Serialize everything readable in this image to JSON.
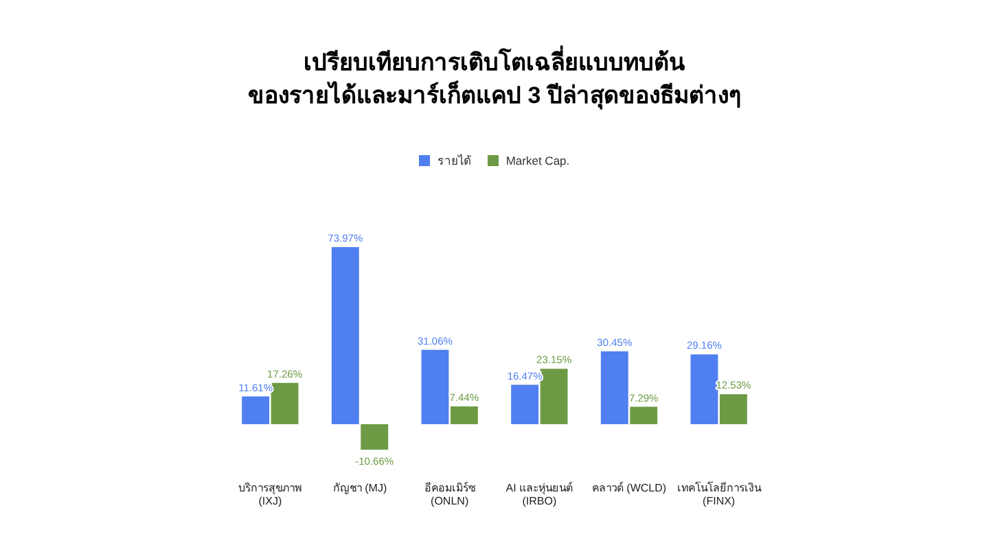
{
  "chart_data": {
    "type": "bar",
    "title": "เปรียบเทียบการเติบโตเฉลี่ยแบบทบต้น\nของรายได้และมาร์เก็ตแคป 3 ปีล่าสุดของธีมต่างๆ",
    "categories": [
      "บริการสุขภาพ (IXJ)",
      "กัญชา (MJ)",
      "อีคอมเมิร์ซ (ONLN)",
      "AI และหุ่นยนต์ (IRBO)",
      "คลาวด์ (WCLD)",
      "เทคโนโลยีการเงิน (FINX)"
    ],
    "series": [
      {
        "name": "รายได้",
        "color": "#4f7ff0",
        "values": [
          11.61,
          73.97,
          31.06,
          16.47,
          30.45,
          29.16
        ],
        "value_labels": [
          "11.61%",
          "73.97%",
          "31.06%",
          "16.47%",
          "30.45%",
          "29.16%"
        ]
      },
      {
        "name": "Market Cap.",
        "color": "#6d9b45",
        "values": [
          17.26,
          -10.66,
          7.44,
          23.15,
          7.29,
          12.53
        ],
        "value_labels": [
          "17.26%",
          "-10.66%",
          "7.44%",
          "23.15%",
          "7.29%",
          "12.53%"
        ]
      }
    ],
    "legend": "top"
  }
}
